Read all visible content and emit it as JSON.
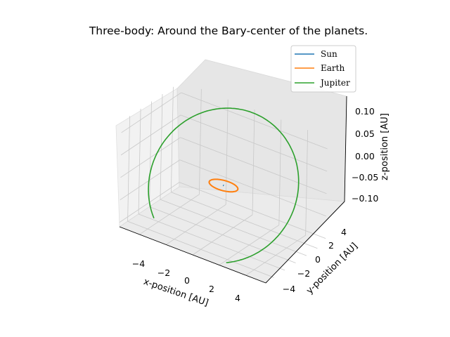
{
  "chart_data": {
    "type": "line",
    "projection": "3d",
    "title": "Three-body: Around the Bary-center of the planets.",
    "xlabel": "x-position [AU]",
    "ylabel": "y-position [AU]",
    "zlabel": "z-position [AU]",
    "xlim": [
      -5.5,
      5.5
    ],
    "ylim": [
      -5.5,
      5.5
    ],
    "zlim": [
      -0.11,
      0.125
    ],
    "xticks": [
      "−4",
      "−2",
      "0",
      "2",
      "4"
    ],
    "yticks": [
      "−4",
      "−2",
      "0",
      "2",
      "4"
    ],
    "zticks": [
      "0.10",
      "0.05",
      "0.00",
      "−0.05",
      "−0.10"
    ],
    "grid": true,
    "legend_position": "top-right",
    "series": [
      {
        "name": "Sun",
        "color": "#1f77b4",
        "orbit": {
          "radius": 0.005,
          "z_amplitude": 0.0,
          "start_deg": 0,
          "sweep_deg": 360
        }
      },
      {
        "name": "Earth",
        "color": "#ff7f0e",
        "orbit": {
          "radius": 1.0,
          "z_amplitude": 0.0,
          "start_deg": 0,
          "sweep_deg": 360
        }
      },
      {
        "name": "Jupiter",
        "color": "#2ca02c",
        "orbit": {
          "radius": 5.2,
          "z_amplitude": 0.12,
          "start_deg": -65,
          "sweep_deg": 290
        }
      }
    ]
  }
}
